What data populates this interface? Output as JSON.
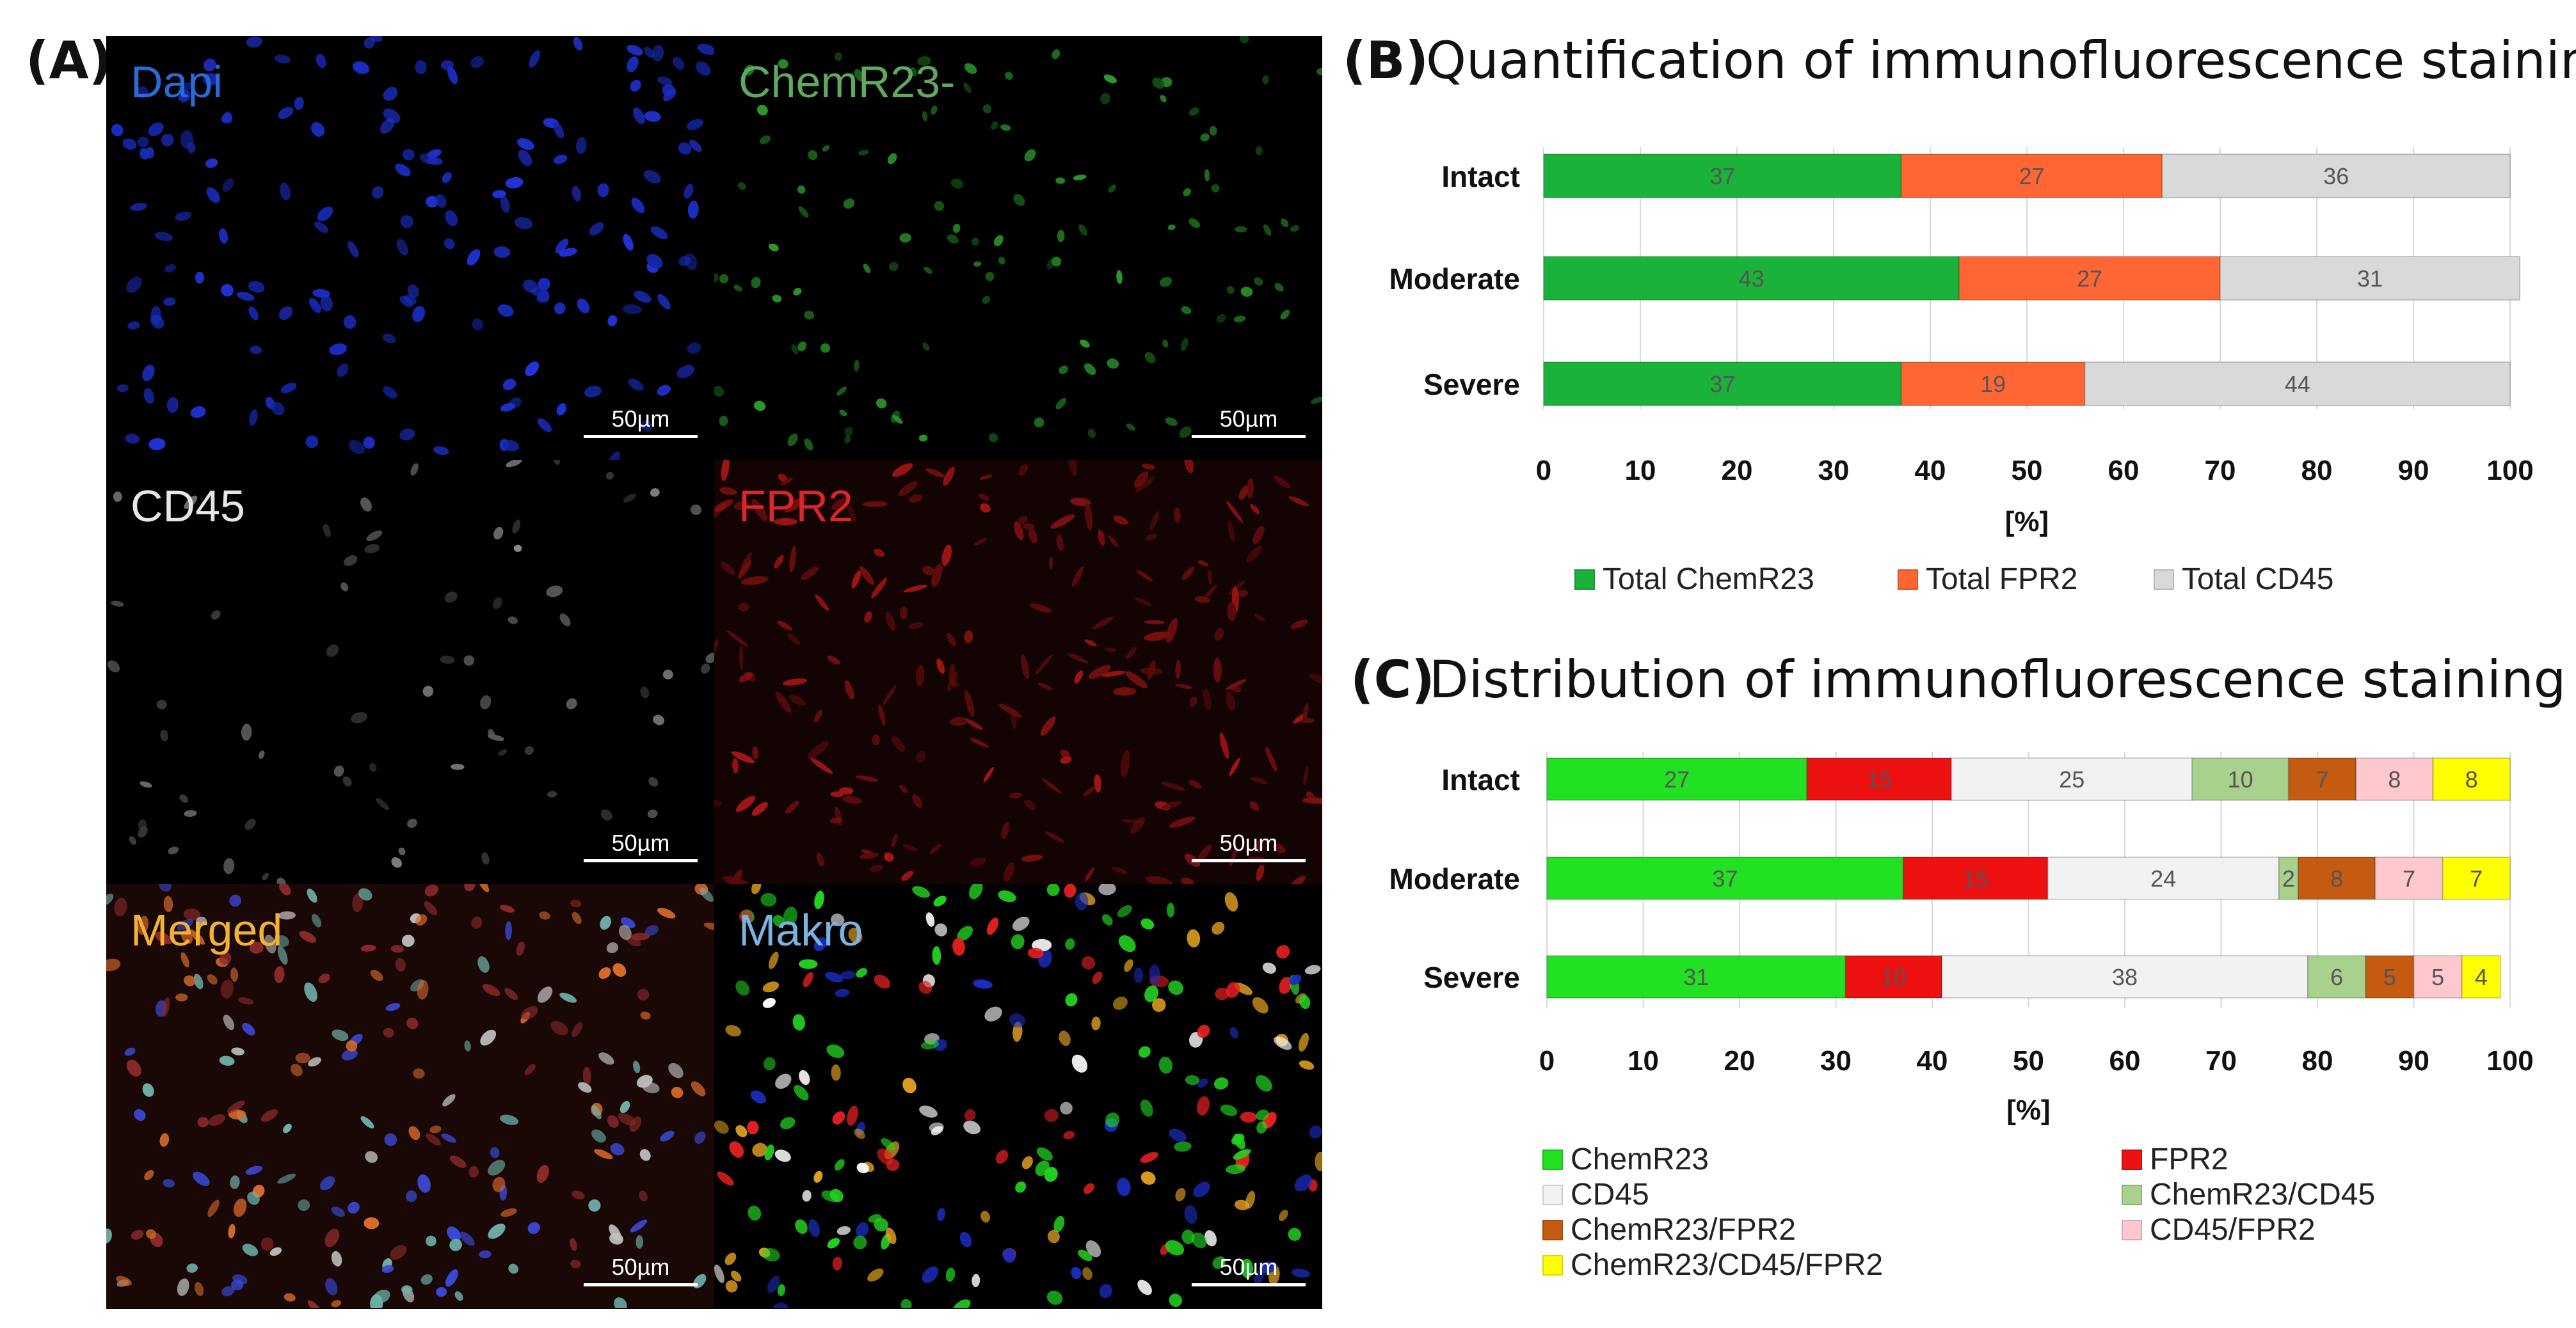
{
  "panels": {
    "a_label": "(A)",
    "b_label": "(B)",
    "c_label": "(C)"
  },
  "micrographs": [
    {
      "id": "dapi",
      "label": "Dapi",
      "label_color": "#2a6bd6",
      "scale": "50µm"
    },
    {
      "id": "chemr23",
      "label": "ChemR23-",
      "label_color": "#5fa85f",
      "scale": "50µm"
    },
    {
      "id": "cd45",
      "label": "CD45",
      "label_color": "#e6e6e6",
      "scale": "50µm"
    },
    {
      "id": "fpr2",
      "label": "FPR2",
      "label_color": "#d9262a",
      "scale": "50µm"
    },
    {
      "id": "merged",
      "label": "Merged",
      "label_color": "#f2b233",
      "scale": "50µm"
    },
    {
      "id": "makro",
      "label": "Makro",
      "label_color": "#7bb3e0",
      "scale": "50µm"
    }
  ],
  "chart_b": {
    "title": "Quantification of immunofluorescence staining",
    "chart_data": {
      "type": "bar",
      "orientation": "horizontal",
      "stacked": true,
      "categories": [
        "Intact",
        "Moderate",
        "Severe"
      ],
      "series": [
        {
          "name": "Total ChemR23",
          "color": "#1ab23a",
          "values": [
            37,
            43,
            37
          ]
        },
        {
          "name": "Total FPR2",
          "color": "#ff6633",
          "values": [
            27,
            27,
            19
          ]
        },
        {
          "name": "Total CD45",
          "color": "#d9d9d9",
          "values": [
            36,
            31,
            44
          ]
        }
      ],
      "xlabel": "[%]",
      "xlim": [
        0,
        100
      ],
      "xticks": [
        0,
        10,
        20,
        30,
        40,
        50,
        60,
        70,
        80,
        90,
        100
      ],
      "grid": true,
      "legend": "bottom"
    }
  },
  "chart_c": {
    "title": "Distribution of immunofluorescence staining",
    "chart_data": {
      "type": "bar",
      "orientation": "horizontal",
      "stacked": true,
      "categories": [
        "Intact",
        "Moderate",
        "Severe"
      ],
      "series": [
        {
          "name": "ChemR23",
          "color": "#22e022",
          "values": [
            27,
            37,
            31
          ]
        },
        {
          "name": "FPR2",
          "color": "#ee1111",
          "values": [
            15,
            15,
            10
          ]
        },
        {
          "name": "CD45",
          "color": "#f2f2f2",
          "values": [
            25,
            24,
            38
          ]
        },
        {
          "name": "ChemR23/CD45",
          "color": "#a9d18e",
          "values": [
            10,
            2,
            6
          ]
        },
        {
          "name": "ChemR23/FPR2",
          "color": "#c55a11",
          "values": [
            7,
            8,
            5
          ]
        },
        {
          "name": "CD45/FPR2",
          "color": "#ffc7ce",
          "values": [
            8,
            7,
            5
          ]
        },
        {
          "name": "ChemR23/CD45/FPR2",
          "color": "#ffff00",
          "values": [
            8,
            7,
            4
          ]
        }
      ],
      "xlabel": "[%]",
      "xlim": [
        0,
        100
      ],
      "xticks": [
        0,
        10,
        20,
        30,
        40,
        50,
        60,
        70,
        80,
        90,
        100
      ],
      "grid": true,
      "legend": "bottom"
    }
  }
}
